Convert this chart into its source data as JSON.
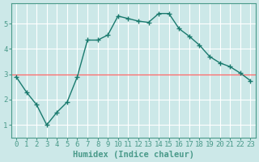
{
  "title": "",
  "xlabel": "Humidex (Indice chaleur)",
  "ylabel": "",
  "x": [
    0,
    1,
    2,
    3,
    4,
    5,
    6,
    7,
    8,
    9,
    10,
    11,
    12,
    13,
    14,
    15,
    16,
    17,
    18,
    19,
    20,
    21,
    22,
    23
  ],
  "y": [
    2.9,
    2.3,
    1.8,
    1.0,
    1.5,
    1.9,
    2.9,
    4.35,
    4.35,
    4.55,
    5.3,
    5.2,
    5.1,
    5.05,
    5.4,
    5.4,
    4.8,
    4.5,
    4.15,
    3.7,
    3.45,
    3.3,
    3.05,
    2.75
  ],
  "line_color": "#1a7a6e",
  "marker": "+",
  "marker_size": 4,
  "background_color": "#cce8e8",
  "grid_color": "#ffffff",
  "ylim": [
    0.5,
    5.8
  ],
  "xlim": [
    -0.5,
    23.5
  ],
  "yticks": [
    1,
    2,
    3,
    4,
    5
  ],
  "xticks": [
    0,
    1,
    2,
    3,
    4,
    5,
    6,
    7,
    8,
    9,
    10,
    11,
    12,
    13,
    14,
    15,
    16,
    17,
    18,
    19,
    20,
    21,
    22,
    23
  ],
  "tick_fontsize": 6.5,
  "xlabel_fontsize": 7.5,
  "line_width": 1.0,
  "hline_y": 3.0,
  "hline_color": "#ff6666",
  "spine_color": "#4a9a8a",
  "tick_color": "#4a9a8a"
}
